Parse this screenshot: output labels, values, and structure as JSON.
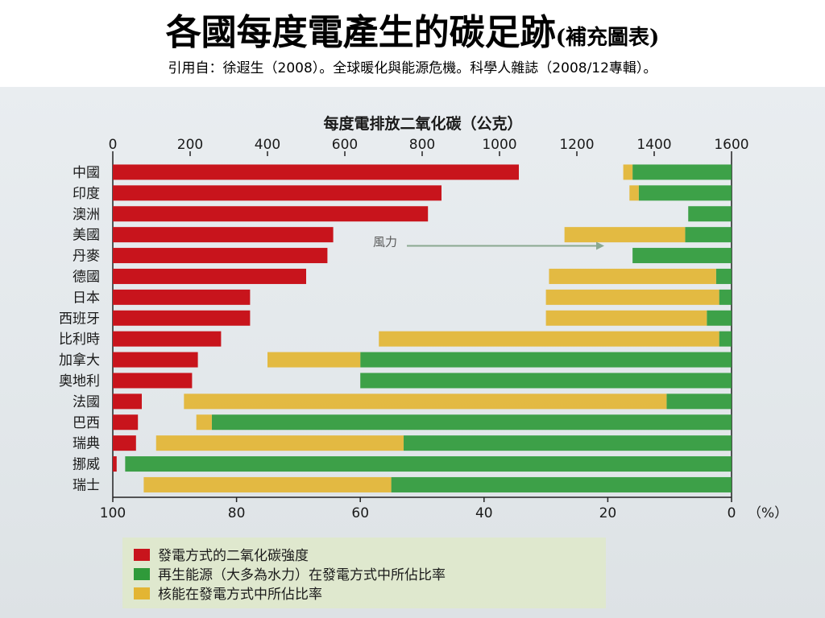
{
  "slide": {
    "title": "各國每度電產生的碳足跡",
    "title_suffix": "(補充圖表)",
    "citation": "引用自：徐遐生（2008）。全球暖化與能源危機。科學人雜誌（2008/12專輯）。"
  },
  "chart_data": {
    "type": "bar",
    "title": "每度電排放二氧化碳（公克）",
    "top_axis": {
      "min": 0,
      "max": 1600,
      "ticks": [
        0,
        200,
        400,
        600,
        800,
        1000,
        1200,
        1400,
        1600
      ]
    },
    "bottom_axis": {
      "min": 0,
      "max": 100,
      "reversed": true,
      "ticks": [
        100,
        80,
        60,
        40,
        20,
        0
      ],
      "unit_label": "（%）"
    },
    "categories": [
      "中國",
      "印度",
      "澳洲",
      "美國",
      "丹麥",
      "德國",
      "日本",
      "西班牙",
      "比利時",
      "加拿大",
      "奧地利",
      "法國",
      "巴西",
      "瑞典",
      "挪威",
      "瑞士"
    ],
    "series": [
      {
        "name": "發電方式的二氧化碳強度",
        "color": "#c8141c",
        "values": [
          1050,
          850,
          815,
          570,
          555,
          500,
          355,
          355,
          280,
          220,
          205,
          75,
          65,
          60,
          10,
          0
        ]
      },
      {
        "name": "再生能源（大多為水力）在發電方式中所佔比率",
        "color": "#2f9a3a",
        "values": [
          16,
          15,
          7,
          7.5,
          16,
          2.5,
          2,
          4,
          2,
          60,
          60,
          10.5,
          84,
          53,
          98,
          55
        ]
      },
      {
        "name": "核能在發電方式中所佔比率",
        "color": "#e3b533",
        "values": [
          1.5,
          1.5,
          0,
          19.5,
          0,
          27,
          28,
          26,
          55,
          15,
          0,
          78,
          2.5,
          40,
          0,
          40
        ]
      }
    ],
    "annotations": [
      {
        "text": "風力"
      }
    ],
    "legend_position": "bottom",
    "grid": false,
    "colors": {
      "background": "#e6ebee",
      "text": "#1a1a1a",
      "axis": "#222222",
      "wind_arrow": "#8aa890"
    }
  }
}
